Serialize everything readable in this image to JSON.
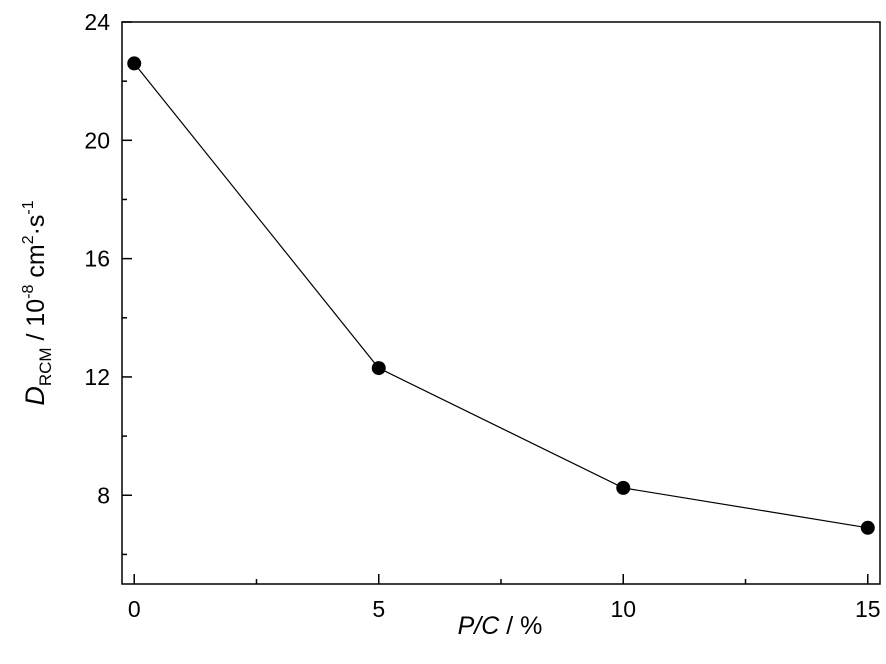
{
  "chart_data": {
    "type": "line",
    "x": [
      0,
      5,
      10,
      15
    ],
    "y": [
      22.6,
      12.3,
      8.25,
      6.9
    ],
    "xlim": [
      -0.25,
      15.25
    ],
    "ylim": [
      5,
      24
    ],
    "x_major_ticks": [
      0,
      5,
      10,
      15
    ],
    "x_minor_ticks": [
      2.5,
      7.5,
      12.5
    ],
    "y_major_ticks": [
      8,
      12,
      16,
      20,
      24
    ],
    "y_minor_ticks": [
      6,
      10,
      14,
      18,
      22
    ],
    "x_tick_labels": [
      "0",
      "5",
      "10",
      "15"
    ],
    "y_tick_labels": [
      "8",
      "12",
      "16",
      "20",
      "24"
    ],
    "xlabel": {
      "p": "P",
      "slash": "/",
      "c": "C",
      "unit": " / %"
    },
    "ylabel": {
      "symbol": "D",
      "subscript": "RCM",
      "prefix": " / 10",
      "exp1": "-8",
      "mid": " cm",
      "exp2": "2",
      "dot": "·s",
      "exp3": "-1"
    },
    "grid": false,
    "legend": "none",
    "marker": "filled-circle",
    "colors": {
      "line": "#000000",
      "marker": "#000000",
      "axes": "#000000"
    }
  }
}
